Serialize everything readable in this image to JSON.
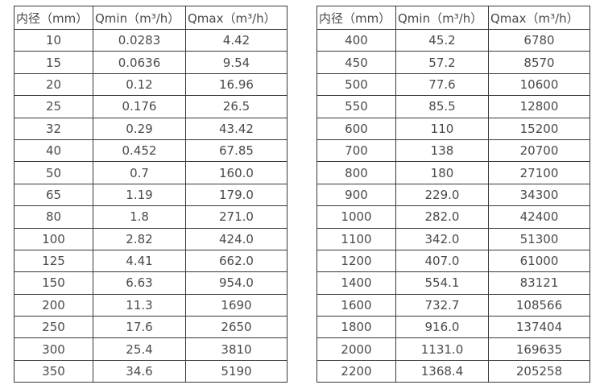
{
  "colors": {
    "background": "#ffffff",
    "border": "#383838",
    "text": "#4a4a4a"
  },
  "tables": [
    {
      "name": "flow-spec-small-diameters",
      "headers": [
        "内径（mm）",
        "Qmin（m³/h）",
        "Qmax（m³/h）"
      ],
      "rows": [
        [
          "10",
          "0.0283",
          "4.42"
        ],
        [
          "15",
          "0.0636",
          "9.54"
        ],
        [
          "20",
          "0.12",
          "16.96"
        ],
        [
          "25",
          "0.176",
          "26.5"
        ],
        [
          "32",
          "0.29",
          "43.42"
        ],
        [
          "40",
          "0.452",
          "67.85"
        ],
        [
          "50",
          "0.7",
          "160.0"
        ],
        [
          "65",
          "1.19",
          "179.0"
        ],
        [
          "80",
          "1.8",
          "271.0"
        ],
        [
          "100",
          "2.82",
          "424.0"
        ],
        [
          "125",
          "4.41",
          "662.0"
        ],
        [
          "150",
          "6.63",
          "954.0"
        ],
        [
          "200",
          "11.3",
          "1690"
        ],
        [
          "250",
          "17.6",
          "2650"
        ],
        [
          "300",
          "25.4",
          "3810"
        ],
        [
          "350",
          "34.6",
          "5190"
        ]
      ]
    },
    {
      "name": "flow-spec-large-diameters",
      "headers": [
        "内径（mm）",
        "Qmin（m³/h）",
        "Qmax（m³/h）"
      ],
      "rows": [
        [
          "400",
          "45.2",
          "6780"
        ],
        [
          "450",
          "57.2",
          "8570"
        ],
        [
          "500",
          "77.6",
          "10600"
        ],
        [
          "550",
          "85.5",
          "12800"
        ],
        [
          "600",
          "110",
          "15200"
        ],
        [
          "700",
          "138",
          "20700"
        ],
        [
          "800",
          "180",
          "27100"
        ],
        [
          "900",
          "229.0",
          "34300"
        ],
        [
          "1000",
          "282.0",
          "42400"
        ],
        [
          "1100",
          "342.0",
          "51300"
        ],
        [
          "1200",
          "407.0",
          "61000"
        ],
        [
          "1400",
          "554.1",
          "83121"
        ],
        [
          "1600",
          "732.7",
          "108566"
        ],
        [
          "1800",
          "916.0",
          "137404"
        ],
        [
          "2000",
          "1131.0",
          "169635"
        ],
        [
          "2200",
          "1368.4",
          "205258"
        ]
      ]
    }
  ]
}
